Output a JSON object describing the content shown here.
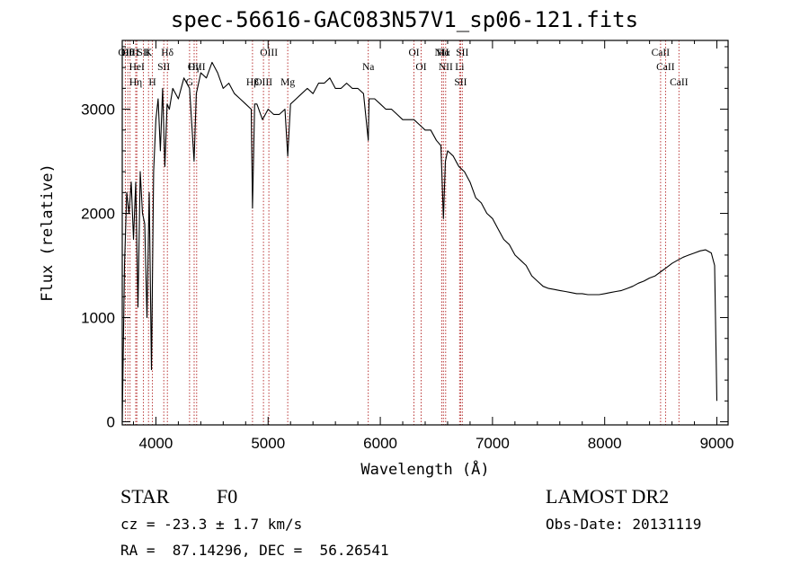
{
  "chart_data": {
    "type": "line",
    "title": "spec-56616-GAC083N57V1_sp06-121.fits",
    "xlabel": "Wavelength (Å)",
    "ylabel": "Flux (relative)",
    "xlim": [
      3700,
      9100
    ],
    "ylim": [
      -30,
      3660
    ],
    "grid": false,
    "x_ticks": [
      4000,
      5000,
      6000,
      7000,
      8000,
      9000
    ],
    "y_ticks": [
      0,
      1000,
      2000,
      3000
    ],
    "series": [
      {
        "x": [
          3700,
          3720,
          3740,
          3760,
          3780,
          3800,
          3820,
          3840,
          3860,
          3880,
          3900,
          3920,
          3940,
          3960,
          3980,
          4000,
          4020,
          4040,
          4060,
          4080,
          4100,
          4120,
          4150,
          4200,
          4250,
          4300,
          4340,
          4360,
          4400,
          4450,
          4500,
          4550,
          4600,
          4650,
          4700,
          4750,
          4800,
          4850,
          4861,
          4880,
          4900,
          4950,
          5000,
          5050,
          5100,
          5150,
          5175,
          5200,
          5250,
          5300,
          5350,
          5400,
          5450,
          5500,
          5550,
          5600,
          5650,
          5700,
          5750,
          5800,
          5850,
          5893,
          5900,
          5950,
          6000,
          6050,
          6100,
          6150,
          6200,
          6250,
          6300,
          6350,
          6400,
          6450,
          6500,
          6540,
          6563,
          6580,
          6600,
          6650,
          6700,
          6750,
          6800,
          6850,
          6900,
          6950,
          7000,
          7050,
          7100,
          7150,
          7200,
          7250,
          7300,
          7350,
          7400,
          7450,
          7500,
          7550,
          7600,
          7650,
          7700,
          7750,
          7800,
          7850,
          7900,
          7950,
          8000,
          8050,
          8100,
          8150,
          8200,
          8250,
          8300,
          8350,
          8400,
          8450,
          8500,
          8550,
          8600,
          8650,
          8700,
          8750,
          8800,
          8850,
          8900,
          8950,
          8980,
          9000
        ],
        "y": [
          0,
          1500,
          2200,
          2000,
          2300,
          1750,
          2300,
          1100,
          2400,
          2000,
          1900,
          1000,
          2200,
          500,
          2400,
          2900,
          3100,
          2600,
          3200,
          2450,
          3050,
          3000,
          3200,
          3100,
          3300,
          3200,
          2500,
          3150,
          3350,
          3300,
          3450,
          3350,
          3200,
          3250,
          3150,
          3100,
          3050,
          3000,
          2050,
          3050,
          3050,
          2900,
          3000,
          2950,
          2950,
          3000,
          2550,
          3050,
          3100,
          3150,
          3200,
          3150,
          3250,
          3250,
          3300,
          3200,
          3200,
          3250,
          3200,
          3200,
          3150,
          2700,
          3100,
          3100,
          3050,
          3000,
          3000,
          2950,
          2900,
          2900,
          2900,
          2850,
          2800,
          2800,
          2700,
          2650,
          1950,
          2500,
          2600,
          2550,
          2450,
          2400,
          2300,
          2150,
          2100,
          2000,
          1950,
          1850,
          1750,
          1700,
          1600,
          1550,
          1500,
          1400,
          1350,
          1300,
          1280,
          1270,
          1260,
          1250,
          1240,
          1230,
          1230,
          1220,
          1220,
          1220,
          1230,
          1240,
          1250,
          1260,
          1280,
          1300,
          1330,
          1350,
          1380,
          1400,
          1440,
          1480,
          1520,
          1550,
          1580,
          1600,
          1620,
          1640,
          1650,
          1620,
          1500,
          200
        ]
      }
    ],
    "line_markers": [
      {
        "w": 3727,
        "label": "OII"
      },
      {
        "w": 3750,
        "label": "Hθ"
      },
      {
        "w": 3770,
        "label": "OIII"
      },
      {
        "w": 3820,
        "label": "Hη"
      },
      {
        "w": 3830,
        "label": "HeI"
      },
      {
        "w": 3889,
        "label": "SII"
      },
      {
        "w": 3934,
        "label": "K"
      },
      {
        "w": 3969,
        "label": "H"
      },
      {
        "w": 4070,
        "label": "SII"
      },
      {
        "w": 4102,
        "label": "Hδ"
      },
      {
        "w": 4300,
        "label": "G"
      },
      {
        "w": 4341,
        "label": "Hγ"
      },
      {
        "w": 4363,
        "label": "OIII"
      },
      {
        "w": 4861,
        "label": "Hβ"
      },
      {
        "w": 4959,
        "label": "OIII"
      },
      {
        "w": 5007,
        "label": "OIII"
      },
      {
        "w": 5175,
        "label": "Mg"
      },
      {
        "w": 5893,
        "label": "Na"
      },
      {
        "w": 6300,
        "label": "OI"
      },
      {
        "w": 6364,
        "label": "OI"
      },
      {
        "w": 6548,
        "label": "NII"
      },
      {
        "w": 6563,
        "label": "Hα"
      },
      {
        "w": 6583,
        "label": "NII"
      },
      {
        "w": 6707,
        "label": "Li"
      },
      {
        "w": 6716,
        "label": "SII"
      },
      {
        "w": 6731,
        "label": "SII"
      },
      {
        "w": 8498,
        "label": "CaII"
      },
      {
        "w": 8542,
        "label": "CaII"
      },
      {
        "w": 8662,
        "label": "CaII"
      }
    ]
  },
  "footer": {
    "object_type": "STAR",
    "spectral_class": "F0",
    "redshift": "cz = -23.3 ± 1.7 km/s",
    "coords": "RA =  87.14296, DEC =  56.26541",
    "survey": "LAMOST DR2",
    "obs_date": "Obs-Date: 20131119"
  },
  "colors": {
    "background": "#ffffff",
    "spectrum": "#000000",
    "line_marker": "#b22222"
  }
}
